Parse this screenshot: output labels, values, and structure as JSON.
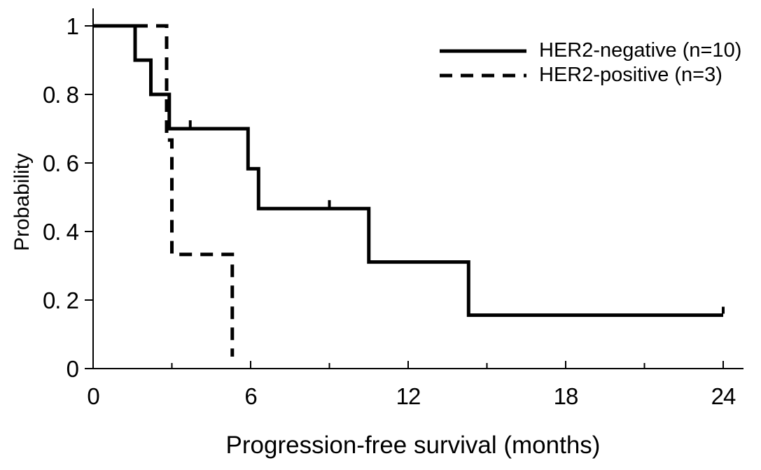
{
  "chart_data": {
    "type": "line",
    "subtype": "kaplan-meier-step",
    "title": "",
    "xlabel": "Progression-free survival (months)",
    "ylabel": "Probability",
    "xlim": [
      0,
      24
    ],
    "ylim": [
      0,
      1
    ],
    "grid": false,
    "legend_position": "top-right",
    "line_color": "#000000",
    "background_color": "#ffffff",
    "x_ticks": {
      "major_values": [
        0,
        6,
        12,
        18,
        24
      ],
      "major_labels": [
        "0",
        "6",
        "12",
        "18",
        "24"
      ],
      "minor_values": [
        3,
        9,
        15,
        21
      ]
    },
    "y_ticks": {
      "values": [
        1,
        0.8,
        0.6,
        0.4,
        0.2,
        0
      ],
      "labels": [
        "1",
        "0. 8",
        "0. 6",
        "0. 4",
        "0. 2",
        "0"
      ]
    },
    "series": [
      {
        "name": "HER2-negative (n=10)",
        "line_style": "solid",
        "step_points": [
          [
            0,
            1
          ],
          [
            1.6,
            1
          ],
          [
            1.6,
            0.9
          ],
          [
            2.2,
            0.9
          ],
          [
            2.2,
            0.8
          ],
          [
            2.9,
            0.8
          ],
          [
            2.9,
            0.7
          ],
          [
            5.9,
            0.7
          ],
          [
            5.9,
            0.583
          ],
          [
            6.3,
            0.583
          ],
          [
            6.3,
            0.467
          ],
          [
            10.5,
            0.467
          ],
          [
            10.5,
            0.311
          ],
          [
            14.3,
            0.311
          ],
          [
            14.3,
            0.156
          ],
          [
            24,
            0.156
          ]
        ],
        "censor_marks": [
          [
            3.7,
            0.7
          ],
          [
            9,
            0.467
          ],
          [
            24,
            0.156
          ]
        ]
      },
      {
        "name": "HER2-positive (n=3)",
        "line_style": "dashed",
        "step_points": [
          [
            0,
            1
          ],
          [
            2.8,
            1
          ],
          [
            2.8,
            0.667
          ],
          [
            3.0,
            0.667
          ],
          [
            3.0,
            0.333
          ],
          [
            5.3,
            0.333
          ],
          [
            5.3,
            0.035
          ]
        ],
        "censor_marks": []
      }
    ]
  }
}
